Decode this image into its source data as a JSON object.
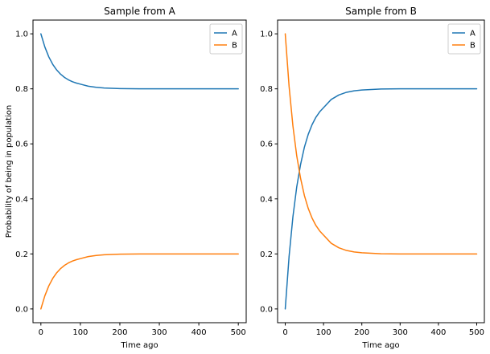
{
  "figure": {
    "colors": {
      "A": "#1f77b4",
      "B": "#ff7f0e"
    }
  },
  "chart_data": [
    {
      "type": "line",
      "title": "Sample from A",
      "xlabel": "Time ago",
      "ylabel": "Probability of being in population",
      "xlim": [
        -20,
        520
      ],
      "ylim": [
        -0.05,
        1.05
      ],
      "xticks": [
        0,
        100,
        200,
        300,
        400,
        500
      ],
      "xtick_labels": [
        "0",
        "100",
        "200",
        "300",
        "400",
        "500"
      ],
      "yticks": [
        0.0,
        0.2,
        0.4,
        0.6,
        0.8,
        1.0
      ],
      "ytick_labels": [
        "0.0",
        "0.2",
        "0.4",
        "0.6",
        "0.8",
        "1.0"
      ],
      "grid": false,
      "legend": {
        "position": "top-right",
        "entries": [
          "A",
          "B"
        ]
      },
      "x": [
        0,
        10,
        20,
        30,
        40,
        50,
        60,
        70,
        80,
        90,
        100,
        120,
        140,
        160,
        180,
        200,
        250,
        300,
        350,
        400,
        450,
        500
      ],
      "series": [
        {
          "name": "A",
          "values": [
            1.0,
            0.9524,
            0.9164,
            0.8891,
            0.8687,
            0.8531,
            0.8414,
            0.8326,
            0.8259,
            0.8209,
            0.8171,
            0.8097,
            0.8056,
            0.8031,
            0.8018,
            0.801,
            0.8002,
            0.8,
            0.8,
            0.8,
            0.8,
            0.8
          ]
        },
        {
          "name": "B",
          "values": [
            0.0,
            0.0476,
            0.0836,
            0.1109,
            0.1313,
            0.1469,
            0.1586,
            0.1674,
            0.1741,
            0.1791,
            0.1829,
            0.1903,
            0.1944,
            0.1969,
            0.1982,
            0.199,
            0.1998,
            0.2,
            0.2,
            0.2,
            0.2,
            0.2
          ]
        }
      ]
    },
    {
      "type": "line",
      "title": "Sample from B",
      "xlabel": "Time ago",
      "ylabel": "",
      "xlim": [
        -20,
        520
      ],
      "ylim": [
        -0.05,
        1.05
      ],
      "xticks": [
        0,
        100,
        200,
        300,
        400,
        500
      ],
      "xtick_labels": [
        "0",
        "100",
        "200",
        "300",
        "400",
        "500"
      ],
      "yticks": [
        0.0,
        0.2,
        0.4,
        0.6,
        0.8,
        1.0
      ],
      "ytick_labels": [
        "0.0",
        "0.2",
        "0.4",
        "0.6",
        "0.8",
        "1.0"
      ],
      "grid": false,
      "legend": {
        "position": "top-right",
        "entries": [
          "A",
          "B"
        ]
      },
      "x": [
        0,
        10,
        20,
        30,
        40,
        50,
        60,
        70,
        80,
        90,
        100,
        120,
        140,
        160,
        180,
        200,
        250,
        300,
        350,
        400,
        450,
        500
      ],
      "series": [
        {
          "name": "A",
          "values": [
            0.0,
            0.1906,
            0.3346,
            0.4436,
            0.525,
            0.5877,
            0.6344,
            0.6696,
            0.6965,
            0.7165,
            0.7316,
            0.7613,
            0.7777,
            0.7875,
            0.7929,
            0.7959,
            0.7993,
            0.8,
            0.8,
            0.8,
            0.8,
            0.8
          ]
        },
        {
          "name": "B",
          "values": [
            1.0,
            0.8094,
            0.6654,
            0.5564,
            0.475,
            0.4123,
            0.3656,
            0.3304,
            0.3035,
            0.2835,
            0.2684,
            0.2387,
            0.2223,
            0.2125,
            0.2071,
            0.2041,
            0.2007,
            0.2,
            0.2,
            0.2,
            0.2,
            0.2
          ]
        }
      ]
    }
  ]
}
